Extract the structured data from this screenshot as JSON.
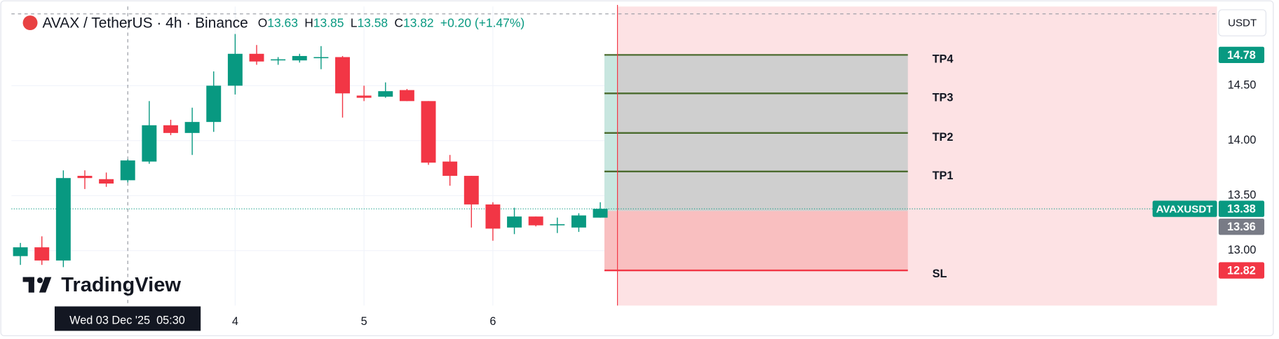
{
  "header": {
    "symbol": "AVAX / TetherUS · 4h · Binance",
    "ohlc": [
      {
        "label": "O",
        "value": 13.63
      },
      {
        "label": "H",
        "value": 13.85
      },
      {
        "label": "L",
        "value": 13.58
      },
      {
        "label": "C",
        "value": 13.82
      }
    ],
    "change": "+0.20 (+1.47%)"
  },
  "currency": "USDT",
  "watermark": "TradingView",
  "chart_data": {
    "type": "candlestick",
    "categories": [
      null,
      null,
      null,
      null,
      null,
      null,
      null,
      null,
      null,
      null,
      "4",
      null,
      null,
      null,
      null,
      null,
      "5",
      null,
      null,
      null,
      null,
      null,
      "6",
      null,
      null,
      null,
      null,
      null
    ],
    "open": [
      12.95,
      13.03,
      12.91,
      13.68,
      13.65,
      13.64,
      13.81,
      14.14,
      14.07,
      14.17,
      14.5,
      14.79,
      14.73,
      14.73,
      14.75,
      14.76,
      14.41,
      14.4,
      14.46,
      14.36,
      13.81,
      13.68,
      13.42,
      13.21,
      13.31,
      13.23,
      13.21,
      13.3
    ],
    "high": [
      13.07,
      13.13,
      13.73,
      13.73,
      13.71,
      13.83,
      14.36,
      14.19,
      14.3,
      14.63,
      14.97,
      14.87,
      14.76,
      14.79,
      14.86,
      14.77,
      14.5,
      14.53,
      14.47,
      14.36,
      13.87,
      13.68,
      13.44,
      13.39,
      13.31,
      13.3,
      13.34,
      13.44
    ],
    "low": [
      12.87,
      12.87,
      12.85,
      13.56,
      13.58,
      13.62,
      13.79,
      14.05,
      13.87,
      14.08,
      14.42,
      14.69,
      14.69,
      14.71,
      14.65,
      14.21,
      14.36,
      14.39,
      14.36,
      13.78,
      13.59,
      13.21,
      13.09,
      13.15,
      13.22,
      13.16,
      13.17,
      13.3
    ],
    "close": [
      13.03,
      12.91,
      13.66,
      13.66,
      13.61,
      13.82,
      14.14,
      14.07,
      14.17,
      14.5,
      14.79,
      14.72,
      14.74,
      14.77,
      14.76,
      14.43,
      14.39,
      14.45,
      14.36,
      13.8,
      13.68,
      13.42,
      13.2,
      13.31,
      13.23,
      13.24,
      13.32,
      13.38
    ],
    "up_color": "#089981",
    "down_color": "#f23645",
    "ylim": [
      12.5,
      15.22
    ],
    "yticks": [
      {
        "value": 13,
        "label": "13.00"
      },
      {
        "value": 13.5,
        "label": "13.50"
      },
      {
        "value": 14,
        "label": "14.00"
      },
      {
        "value": 14.5,
        "label": "14.50"
      }
    ],
    "last_price": {
      "name": "AVAXUSDT",
      "value": 13.38
    },
    "crosshair_label": "Wed 03 Dec '25  05:30",
    "position": {
      "entry": 13.36,
      "targets": [
        {
          "name": "TP1",
          "value": 13.72
        },
        {
          "name": "TP2",
          "value": 14.07
        },
        {
          "name": "TP3",
          "value": 14.43
        },
        {
          "name": "TP4",
          "value": 14.78
        }
      ],
      "stop": {
        "name": "SL",
        "value": 12.82
      }
    }
  }
}
